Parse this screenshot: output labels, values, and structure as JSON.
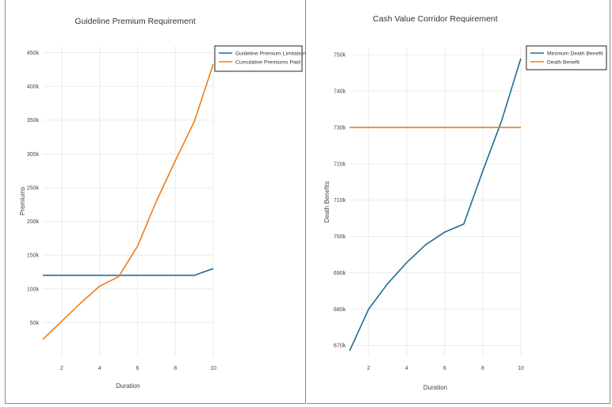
{
  "colors": {
    "blue": "#1f6b94",
    "orange": "#ef7d1a"
  },
  "chart_data": [
    {
      "type": "line",
      "title": "Guideline Premium Requirement",
      "xlabel": "Duration",
      "ylabel": "Premiums",
      "xlim": [
        1,
        10
      ],
      "ylim": [
        0,
        460000
      ],
      "xticks": [
        2,
        4,
        6,
        8,
        10
      ],
      "xtick_labels": [
        "2",
        "4",
        "6",
        "8",
        "10"
      ],
      "yticks": [
        50000,
        100000,
        150000,
        200000,
        250000,
        300000,
        350000,
        400000,
        450000
      ],
      "ytick_labels": [
        "50k",
        "100k",
        "150k",
        "200k",
        "250k",
        "300k",
        "350k",
        "400k",
        "450k"
      ],
      "grid": true,
      "legend_position": "top-right",
      "series": [
        {
          "name": "Guideline Premium Limitation",
          "color": "#1f6b94",
          "x": [
            1,
            2,
            3,
            4,
            5,
            6,
            7,
            8,
            9,
            10
          ],
          "y": [
            120000,
            120000,
            120000,
            120000,
            120000,
            120000,
            120000,
            120000,
            120000,
            130000
          ]
        },
        {
          "name": "Cumulative Premiums Paid",
          "color": "#ef7d1a",
          "x": [
            1,
            2,
            3,
            4,
            5,
            6,
            7,
            8,
            9,
            10
          ],
          "y": [
            25000,
            52000,
            79000,
            104000,
            118000,
            163000,
            230000,
            290000,
            348000,
            433000
          ]
        }
      ]
    },
    {
      "type": "line",
      "title": "Cash Value Corridor Requirement",
      "xlabel": "Duration",
      "ylabel": "Death Benefits",
      "xlim": [
        1,
        10
      ],
      "ylim": [
        667000,
        752000
      ],
      "xticks": [
        2,
        4,
        6,
        8,
        10
      ],
      "xtick_labels": [
        "2",
        "4",
        "6",
        "8",
        "10"
      ],
      "yticks": [
        670000,
        680000,
        690000,
        700000,
        710000,
        720000,
        730000,
        740000,
        750000
      ],
      "ytick_labels": [
        "670k",
        "680k",
        "690k",
        "700k",
        "710k",
        "720k",
        "730k",
        "740k",
        "750k"
      ],
      "grid": true,
      "legend_position": "top-right",
      "series": [
        {
          "name": "Minimum Death Benefit",
          "color": "#1f6b94",
          "x": [
            1,
            2,
            3,
            4,
            5,
            6,
            7,
            8,
            9,
            10
          ],
          "y": [
            668500,
            680000,
            687000,
            692800,
            697700,
            701200,
            703400,
            718000,
            732000,
            749000
          ]
        },
        {
          "name": "Death Benefit",
          "color": "#ef7d1a",
          "x": [
            1,
            2,
            3,
            4,
            5,
            6,
            7,
            8,
            9,
            10
          ],
          "y": [
            730000,
            730000,
            730000,
            730000,
            730000,
            730000,
            730000,
            730000,
            730000,
            730000
          ]
        }
      ]
    }
  ]
}
